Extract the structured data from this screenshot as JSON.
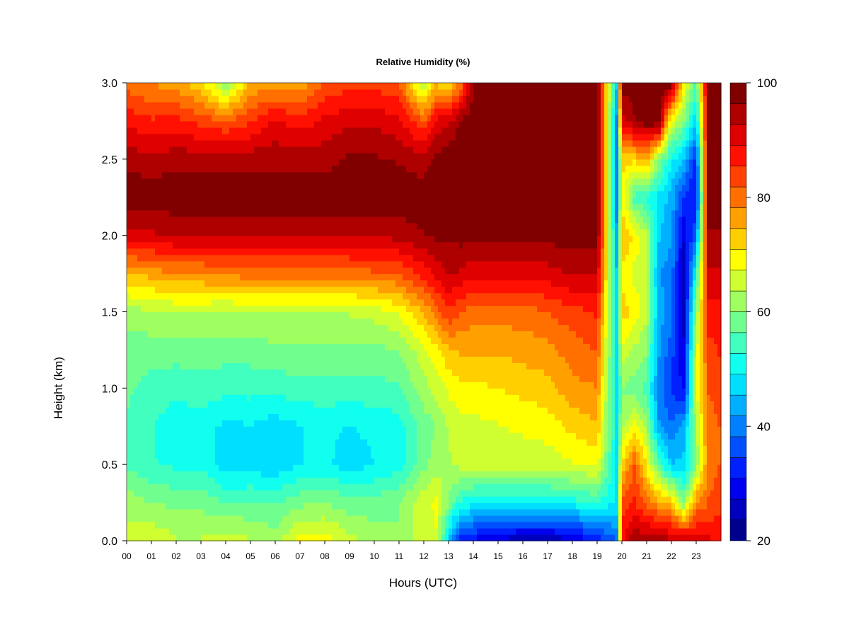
{
  "chart_data": {
    "type": "heatmap",
    "title": "Relative Humidity (%)",
    "xlabel": "Hours (UTC)",
    "ylabel": "Height (km)",
    "x_ticks": [
      "00",
      "01",
      "02",
      "03",
      "04",
      "05",
      "06",
      "07",
      "08",
      "09",
      "10",
      "11",
      "12",
      "13",
      "14",
      "15",
      "16",
      "17",
      "18",
      "19",
      "20",
      "21",
      "22",
      "23"
    ],
    "y_ticks": [
      "0.0",
      "0.5",
      "1.0",
      "1.5",
      "2.0",
      "2.5",
      "3.0"
    ],
    "xlim": [
      0,
      24
    ],
    "ylim": [
      0,
      3.0
    ],
    "colorbar": {
      "min": 20,
      "max": 100,
      "step": 5,
      "ticks": [
        "20",
        "40",
        "60",
        "80",
        "100"
      ],
      "colors": [
        "#00008f",
        "#0000bf",
        "#0000ef",
        "#0020ff",
        "#0050ff",
        "#0080ff",
        "#00afff",
        "#00dfff",
        "#10ffef",
        "#40ffbf",
        "#70ff8f",
        "#9fff60",
        "#cfff30",
        "#ffff00",
        "#ffcf00",
        "#ff9f00",
        "#ff7000",
        "#ff4000",
        "#ff1000",
        "#df0000",
        "#af0000",
        "#800000"
      ]
    },
    "hours": [
      0,
      1,
      2,
      3,
      4,
      5,
      6,
      7,
      8,
      9,
      10,
      11,
      12,
      12.5,
      13,
      13.5,
      14,
      15,
      16,
      17,
      18,
      19,
      19.8,
      20,
      20.5,
      21,
      21.5,
      22,
      22.5,
      23,
      23.5,
      24
    ],
    "heights_km": [
      0,
      0.25,
      0.5,
      0.75,
      1.0,
      1.25,
      1.5,
      1.75,
      2.0,
      2.25,
      2.5,
      2.75,
      3.0
    ],
    "rh_percent": [
      [
        65,
        62,
        56,
        56,
        57,
        58,
        62,
        74,
        91,
        99,
        95,
        88,
        80
      ],
      [
        67,
        60,
        53,
        53,
        55,
        58,
        63,
        76,
        92,
        99,
        94,
        86,
        78
      ],
      [
        64,
        59,
        52,
        50,
        54,
        58,
        64,
        78,
        93,
        99,
        95,
        87,
        76
      ],
      [
        64,
        59,
        52,
        51,
        55,
        58,
        64,
        78,
        93,
        99,
        95,
        84,
        72
      ],
      [
        66,
        56,
        47,
        48,
        54,
        58,
        63,
        79,
        93,
        99,
        95,
        82,
        60
      ],
      [
        64,
        57,
        47,
        49,
        54,
        58,
        64,
        80,
        93,
        99,
        95,
        85,
        75
      ],
      [
        62,
        56,
        46,
        47,
        54,
        59,
        64,
        80,
        93,
        99,
        95,
        90,
        76
      ],
      [
        69,
        59,
        49,
        49,
        55,
        59,
        64,
        80,
        93,
        99,
        95,
        87,
        76
      ],
      [
        69,
        60,
        50,
        50,
        55,
        59,
        64,
        80,
        93,
        99,
        95,
        90,
        82
      ],
      [
        65,
        58,
        47,
        49,
        55,
        59,
        64,
        80,
        93,
        99,
        97,
        92,
        84
      ],
      [
        62,
        58,
        49,
        50,
        55,
        59,
        65,
        81,
        93,
        99,
        97,
        92,
        84
      ],
      [
        60,
        60,
        51,
        51,
        56,
        60,
        68,
        82,
        94,
        99,
        96,
        90,
        82
      ],
      [
        66,
        66,
        59,
        58,
        62,
        66,
        75,
        87,
        96,
        99,
        94,
        82,
        62
      ],
      [
        67,
        68,
        62,
        60,
        65,
        70,
        80,
        90,
        97,
        99,
        98,
        90,
        74
      ],
      [
        45,
        60,
        63,
        64,
        68,
        74,
        85,
        93,
        97,
        99,
        99,
        92,
        70
      ],
      [
        30,
        52,
        65,
        66,
        70,
        75,
        82,
        92,
        98,
        99,
        99,
        97,
        80
      ],
      [
        30,
        50,
        65,
        66,
        70,
        75,
        80,
        90,
        97,
        99,
        99,
        99,
        96
      ],
      [
        26,
        50,
        65,
        67,
        71,
        75,
        80,
        90,
        97,
        99,
        99,
        99,
        98
      ],
      [
        24,
        50,
        65,
        68,
        72,
        76,
        80,
        90,
        97,
        99,
        99,
        99,
        98
      ],
      [
        24,
        50,
        65,
        69,
        73,
        77,
        82,
        91,
        98,
        99,
        99,
        99,
        98
      ],
      [
        26,
        51,
        67,
        72,
        77,
        80,
        84,
        93,
        98,
        99,
        99,
        99,
        98
      ],
      [
        32,
        53,
        68,
        74,
        78,
        82,
        86,
        93,
        98,
        99,
        99,
        99,
        98
      ],
      [
        38,
        48,
        48,
        48,
        47,
        47,
        47,
        45,
        42,
        38,
        38,
        40,
        45
      ],
      [
        88,
        83,
        72,
        62,
        60,
        66,
        73,
        70,
        75,
        70,
        72,
        90,
        99
      ],
      [
        96,
        86,
        82,
        69,
        58,
        63,
        70,
        66,
        70,
        55,
        72,
        96,
        99
      ],
      [
        96,
        80,
        70,
        62,
        55,
        60,
        64,
        66,
        64,
        52,
        75,
        99,
        99
      ],
      [
        96,
        76,
        56,
        42,
        40,
        42,
        44,
        42,
        46,
        48,
        60,
        99,
        99
      ],
      [
        94,
        73,
        46,
        38,
        34,
        36,
        40,
        40,
        42,
        44,
        50,
        66,
        99
      ],
      [
        94,
        60,
        46,
        44,
        30,
        28,
        26,
        25,
        28,
        34,
        45,
        60,
        70
      ],
      [
        92,
        78,
        60,
        62,
        66,
        65,
        60,
        52,
        38,
        30,
        33,
        45,
        55
      ],
      [
        90,
        82,
        80,
        80,
        82,
        84,
        88,
        92,
        96,
        99,
        99,
        99,
        99
      ],
      [
        88,
        84,
        82,
        82,
        84,
        86,
        88,
        92,
        96,
        99,
        99,
        99,
        99
      ]
    ]
  }
}
